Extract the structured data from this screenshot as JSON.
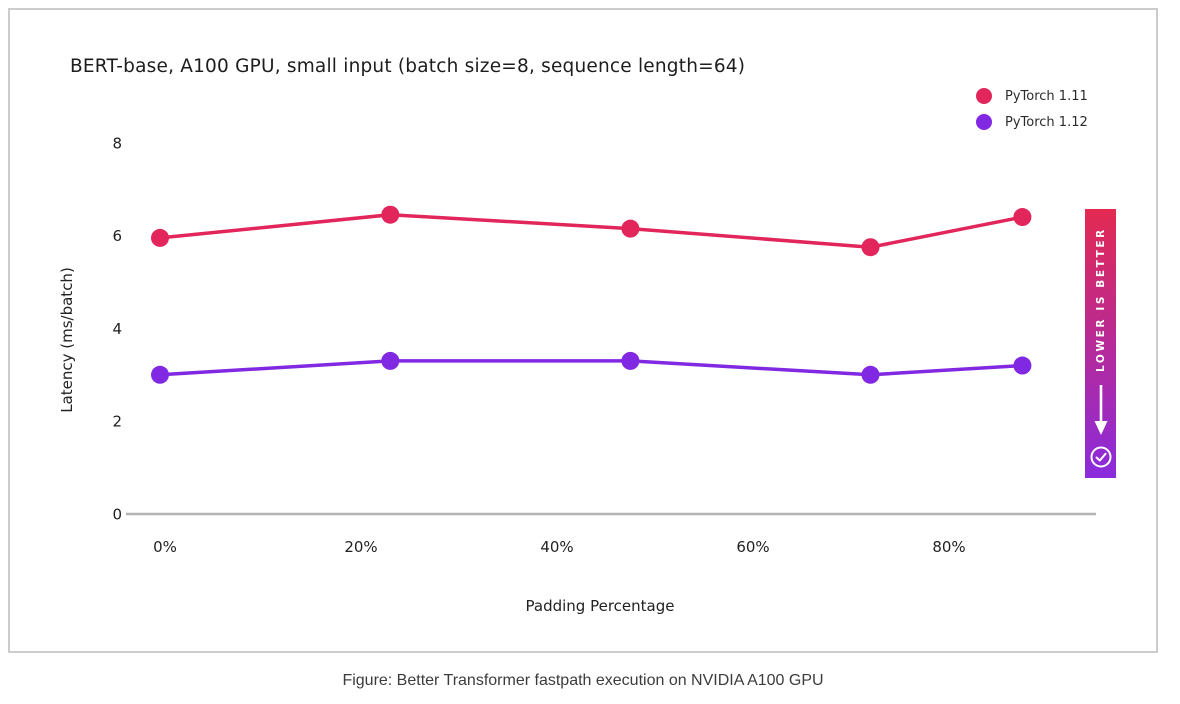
{
  "chart_data": {
    "type": "line",
    "title": "BERT-base, A100 GPU, small input (batch size=8, sequence length=64)",
    "xlabel": "Padding Percentage",
    "ylabel": "Latency (ms/batch)",
    "x": [
      0,
      23.5,
      48,
      72.5,
      88
    ],
    "series": [
      {
        "name": "PyTorch 1.11",
        "color": "#e2265b",
        "values": [
          5.95,
          6.45,
          6.15,
          5.75,
          6.4
        ]
      },
      {
        "name": "PyTorch 1.12",
        "color": "#8128e2",
        "values": [
          3.0,
          3.3,
          3.3,
          3.0,
          3.2
        ]
      }
    ],
    "x_ticks": [
      {
        "value": 0,
        "label": "0%"
      },
      {
        "value": 20,
        "label": "20%"
      },
      {
        "value": 40,
        "label": "40%"
      },
      {
        "value": 60,
        "label": "60%"
      },
      {
        "value": 80,
        "label": "80%"
      }
    ],
    "y_ticks": [
      0,
      2,
      4,
      6,
      8
    ],
    "ylim": [
      0,
      8
    ],
    "grid": false,
    "legend_position": "top-right",
    "axis_color": "#b3b3b3",
    "tick_text_color": "#222222"
  },
  "badge": {
    "label": "LOWER IS BETTER",
    "arrow_direction": "down",
    "icon": "check-circle-icon",
    "gradient_top": "#e32a51",
    "gradient_bottom": "#8a2bdd",
    "text_color": "#ffffff"
  },
  "caption": "Figure: Better Transformer fastpath execution on NVIDIA A100 GPU"
}
